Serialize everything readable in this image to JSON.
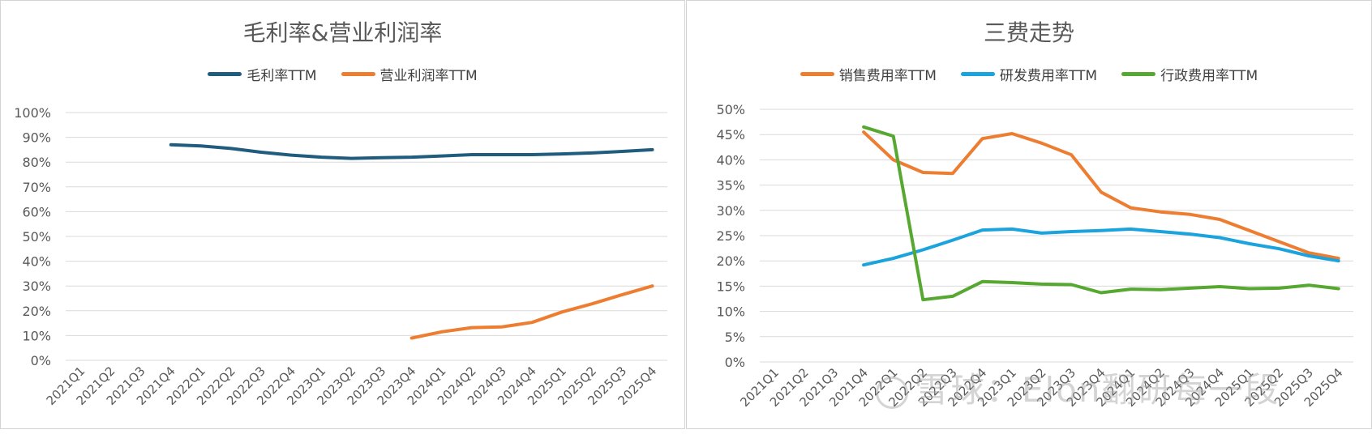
{
  "chart_data": [
    {
      "type": "line",
      "title": "毛利率&营业利润率",
      "categories": [
        "2021Q1",
        "2021Q2",
        "2021Q3",
        "2021Q4",
        "2022Q1",
        "2022Q2",
        "2022Q3",
        "2022Q4",
        "2023Q1",
        "2023Q2",
        "2023Q3",
        "2023Q4",
        "2024Q1",
        "2024Q2",
        "2024Q3",
        "2024Q4",
        "2025Q1",
        "2025Q2",
        "2025Q3",
        "2025Q4"
      ],
      "series": [
        {
          "name": "毛利率TTM",
          "color": "#1f5c7e",
          "values": [
            null,
            null,
            null,
            87,
            86.5,
            85.5,
            84,
            82.8,
            82,
            81.5,
            81.8,
            82,
            82.5,
            83,
            83,
            83,
            83.3,
            83.7,
            84.3,
            85
          ]
        },
        {
          "name": "营业利润率TTM",
          "color": "#ed7d31",
          "values": [
            null,
            null,
            null,
            null,
            null,
            null,
            null,
            null,
            null,
            null,
            null,
            9,
            11.5,
            13.2,
            13.5,
            15.3,
            19.5,
            22.8,
            26.5,
            30
          ]
        }
      ],
      "yticks": [
        "0%",
        "10%",
        "20%",
        "30%",
        "40%",
        "50%",
        "60%",
        "70%",
        "80%",
        "90%",
        "100%"
      ],
      "ylim": [
        0,
        100
      ],
      "legend": "top",
      "grid": true
    },
    {
      "type": "line",
      "title": "三费走势",
      "categories": [
        "2021Q1",
        "2021Q2",
        "2021Q3",
        "2021Q4",
        "2022Q1",
        "2022Q2",
        "2022Q3",
        "2022Q4",
        "2023Q1",
        "2023Q2",
        "2023Q3",
        "2023Q4",
        "2024Q1",
        "2024Q2",
        "2024Q3",
        "2024Q4",
        "2025Q1",
        "2025Q2",
        "2025Q3",
        "2025Q4"
      ],
      "series": [
        {
          "name": "销售费用率TTM",
          "color": "#ed7d31",
          "values": [
            null,
            null,
            null,
            45.5,
            40,
            37.5,
            37.3,
            44.2,
            45.2,
            43.3,
            41,
            33.6,
            30.5,
            29.7,
            29.2,
            28.2,
            26,
            23.8,
            21.6,
            20.5
          ]
        },
        {
          "name": "研发费用率TTM",
          "color": "#1aa3dc",
          "values": [
            null,
            null,
            null,
            19.2,
            20.5,
            22.2,
            24.1,
            26.1,
            26.3,
            25.5,
            25.8,
            26,
            26.3,
            25.8,
            25.3,
            24.6,
            23.4,
            22.4,
            21,
            20
          ]
        },
        {
          "name": "行政费用率TTM",
          "color": "#56a830",
          "values": [
            null,
            null,
            null,
            46.5,
            44.7,
            12.3,
            13,
            15.9,
            15.7,
            15.4,
            15.3,
            13.7,
            14.4,
            14.3,
            14.6,
            14.9,
            14.5,
            14.6,
            15.2,
            14.5
          ]
        }
      ],
      "yticks": [
        "0%",
        "5%",
        "10%",
        "15%",
        "20%",
        "25%",
        "30%",
        "35%",
        "40%",
        "45%",
        "50%"
      ],
      "ylim": [
        0,
        50
      ],
      "legend": "top",
      "grid": true
    }
  ],
  "watermark": "雪球：Elon翻研每一段"
}
